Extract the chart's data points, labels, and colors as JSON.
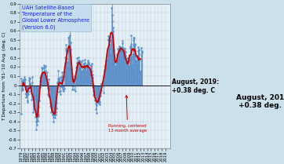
{
  "title_lines": [
    "UAH Satellite-Based",
    "Temperature of the",
    "Global Lower Atmosphere",
    "(Version 6.0)"
  ],
  "annotation_label": "Running, centered\n13-month average",
  "annotation_end_label": "August, 2019:\n+0.38 deg. C",
  "ylabel": "T Departure from '81-’10 Avg. (deg. C)",
  "ylim": [
    -0.7,
    0.9
  ],
  "yticks": [
    -0.7,
    -0.6,
    -0.5,
    -0.4,
    -0.3,
    -0.2,
    -0.1,
    0.0,
    0.1,
    0.2,
    0.3,
    0.4,
    0.5,
    0.6,
    0.7,
    0.8,
    0.9
  ],
  "ytick_labels": [
    "-0.7",
    "-0.6",
    "-0.5",
    "-0.4",
    "-0.3",
    "-0.2",
    "-0.1",
    "0",
    "0.1",
    "0.2",
    "0.3",
    "0.4",
    "0.5",
    "0.6",
    "0.7",
    "0.8",
    "0.9"
  ],
  "bg_color": "#cce0ec",
  "plot_bg_color": "#e4f0f8",
  "bar_color": "#5b8fc9",
  "line_color": "#cc0000",
  "title_color": "#1a1aff",
  "annotation_color": "#cc0000",
  "monthly_data": [
    -0.314,
    0.071,
    -0.038,
    -0.06,
    0.049,
    0.0,
    -0.044,
    0.04,
    0.063,
    0.056,
    0.025,
    0.089,
    0.054,
    0.063,
    -0.01,
    -0.13,
    -0.089,
    -0.098,
    -0.025,
    -0.113,
    -0.04,
    -0.183,
    -0.168,
    -0.072,
    -0.096,
    -0.056,
    0.084,
    0.054,
    0.076,
    0.018,
    -0.028,
    0.003,
    -0.017,
    -0.061,
    -0.158,
    -0.091,
    -0.097,
    0.091,
    0.029,
    -0.151,
    -0.301,
    -0.229,
    -0.153,
    -0.215,
    -0.118,
    -0.113,
    -0.267,
    -0.151,
    -0.354,
    -0.333,
    -0.402,
    -0.489,
    -0.434,
    -0.395,
    -0.328,
    -0.396,
    -0.336,
    -0.329,
    -0.344,
    -0.239,
    -0.168,
    -0.025,
    0.05,
    -0.019,
    0.082,
    0.105,
    0.093,
    0.12,
    0.192,
    0.051,
    0.097,
    0.091,
    0.189,
    0.1,
    0.126,
    0.225,
    0.194,
    0.199,
    0.125,
    0.054,
    0.12,
    0.215,
    0.158,
    0.073,
    0.1,
    0.096,
    0.04,
    0.141,
    0.024,
    -0.101,
    -0.033,
    0.066,
    -0.032,
    -0.12,
    -0.051,
    -0.046,
    -0.125,
    -0.233,
    -0.198,
    -0.251,
    -0.298,
    -0.26,
    -0.28,
    -0.207,
    -0.218,
    -0.325,
    -0.329,
    -0.406,
    -0.351,
    -0.309,
    -0.326,
    -0.286,
    -0.328,
    -0.356,
    -0.302,
    -0.325,
    -0.292,
    -0.259,
    -0.199,
    -0.098,
    0.027,
    0.025,
    0.161,
    0.074,
    0.045,
    -0.073,
    0.026,
    0.063,
    0.086,
    0.015,
    -0.1,
    -0.064,
    -0.013,
    0.06,
    0.095,
    0.141,
    0.099,
    -0.025,
    -0.048,
    0.007,
    0.059,
    -0.006,
    -0.063,
    -0.037,
    0.099,
    0.154,
    0.25,
    0.305,
    0.386,
    0.448,
    0.407,
    0.377,
    0.295,
    0.256,
    0.258,
    0.196,
    0.184,
    0.386,
    0.522,
    0.487,
    0.534,
    0.63,
    0.716,
    0.553,
    0.469,
    0.397,
    0.319,
    0.181,
    0.072,
    0.097,
    -0.049,
    0.083,
    0.071,
    0.063,
    -0.003,
    0.052,
    -0.05,
    0.057,
    0.017,
    0.102,
    -0.069,
    0.076,
    0.069,
    0.093,
    0.198,
    0.209,
    0.244,
    0.302,
    0.238,
    0.231,
    0.192,
    0.264,
    0.31,
    0.269,
    0.27,
    0.198,
    0.264,
    0.255,
    0.259,
    0.218,
    0.203,
    0.152,
    0.153,
    0.195,
    0.273,
    0.132,
    0.155,
    0.171,
    0.228,
    0.239,
    0.2,
    0.244,
    0.282,
    0.186,
    0.206,
    0.199,
    0.088,
    0.152,
    0.216,
    0.226,
    0.227,
    0.228,
    0.256,
    0.273,
    0.234,
    0.228,
    0.25,
    0.166,
    0.13,
    0.116,
    0.046,
    0.155,
    0.219,
    0.217,
    0.209,
    0.235,
    0.152,
    0.12,
    0.083,
    -0.017,
    -0.067,
    -0.112,
    -0.004,
    -0.076,
    -0.064,
    -0.083,
    -0.161,
    -0.165,
    -0.266,
    -0.2,
    -0.218,
    -0.307,
    -0.102,
    -0.13,
    -0.178,
    -0.163,
    -0.199,
    -0.178,
    -0.169,
    -0.131,
    -0.192,
    -0.214,
    -0.186,
    -0.12,
    -0.083,
    -0.066,
    0.013,
    -0.06,
    0.014,
    0.005,
    0.016,
    0.033,
    0.017,
    0.032,
    -0.083,
    0.049,
    0.172,
    0.09,
    0.151,
    0.175,
    0.206,
    0.225,
    0.264,
    0.275,
    0.271,
    0.197,
    0.283,
    0.338,
    0.38,
    0.508,
    0.545,
    0.497,
    0.519,
    0.527,
    0.489,
    0.45,
    0.4,
    0.323,
    0.345,
    0.499,
    0.53,
    0.852,
    0.978,
    0.779,
    0.711,
    0.636,
    0.594,
    0.458,
    0.39,
    0.336,
    0.265,
    0.247,
    0.108,
    0.214,
    0.178,
    0.208,
    0.264,
    0.248,
    0.266,
    0.249,
    0.337,
    0.408,
    0.348,
    0.286,
    0.363,
    0.395,
    0.385,
    0.411,
    0.427,
    0.388,
    0.374,
    0.372,
    0.418,
    0.385,
    0.369,
    0.414,
    0.491,
    0.464,
    0.365,
    0.394,
    0.414,
    0.38,
    0.321,
    0.313,
    0.303,
    0.404,
    0.38,
    0.329,
    0.372,
    0.303,
    0.243,
    0.167,
    0.144,
    0.22,
    0.257,
    0.27,
    0.297,
    0.159,
    0.211,
    0.192,
    0.307,
    0.287,
    0.28,
    0.414,
    0.43,
    0.452,
    0.551,
    0.432,
    0.32,
    0.294,
    0.177,
    0.223,
    0.34,
    0.449,
    0.499,
    0.524,
    0.521,
    0.45,
    0.449,
    0.457,
    0.378,
    0.234,
    0.265,
    0.276,
    0.312,
    0.26,
    0.234,
    0.234,
    0.325,
    0.377,
    0.423,
    0.395,
    0.351,
    0.388,
    0.294,
    0.155,
    0.141,
    0.126,
    0.155,
    0.279,
    0.41,
    0.33,
    0.357,
    0.38
  ],
  "start_year": 1979,
  "start_month": 1,
  "xlim_start": 1978.7,
  "xlim_end": 2020.3
}
